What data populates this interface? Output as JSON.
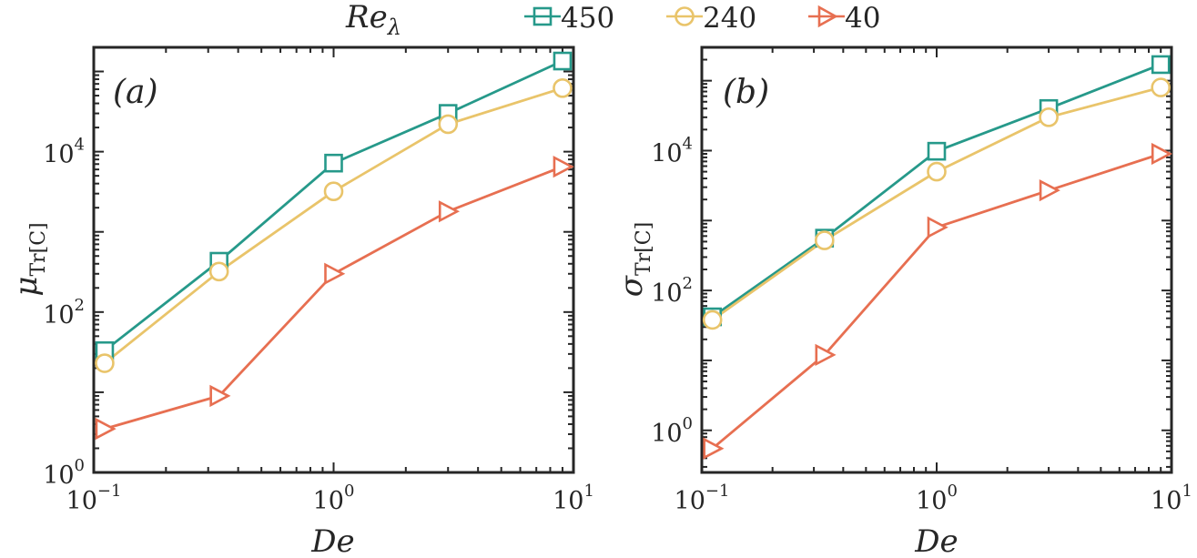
{
  "legend": {
    "title": "Re",
    "title_sub": "λ",
    "entries": [
      "450",
      "240",
      "40"
    ]
  },
  "colors": {
    "s450": "#26998a",
    "s240": "#e9c46a",
    "s40": "#e76f51",
    "axis": "#262626"
  },
  "chart_data": [
    {
      "type": "line",
      "panel": "(a)",
      "xscale": "log",
      "yscale": "log",
      "xlim": [
        0.1,
        10
      ],
      "ylim": [
        1,
        200000
      ],
      "xlabel": "De",
      "ylabel_base": "μ",
      "ylabel_sub": "Tr[C]",
      "xticks": [
        {
          "base": "10",
          "exp": "−1",
          "value": 0.1
        },
        {
          "base": "10",
          "exp": "0",
          "value": 1
        },
        {
          "base": "10",
          "exp": "1",
          "value": 10
        }
      ],
      "yticks": [
        {
          "base": "10",
          "exp": "0",
          "value": 1
        },
        {
          "base": "10",
          "exp": "2",
          "value": 100
        },
        {
          "base": "10",
          "exp": "4",
          "value": 10000
        }
      ],
      "x": [
        0.111,
        0.333,
        1.0,
        3.0,
        9.0
      ],
      "series": [
        {
          "name": "450",
          "marker": "square",
          "color": "#26998a",
          "values": [
            33,
            430,
            7200,
            30000,
            135000
          ]
        },
        {
          "name": "240",
          "marker": "circle",
          "color": "#e9c46a",
          "values": [
            23,
            320,
            3200,
            22000,
            62000
          ]
        },
        {
          "name": "40",
          "marker": "triangle-right",
          "color": "#e76f51",
          "values": [
            3.5,
            9,
            300,
            1800,
            6500
          ]
        }
      ]
    },
    {
      "type": "line",
      "panel": "(b)",
      "xscale": "log",
      "yscale": "log",
      "xlim": [
        0.1,
        10
      ],
      "ylim": [
        0.25,
        300000
      ],
      "xlabel": "De",
      "ylabel_base": "σ",
      "ylabel_sub": "Tr[C]",
      "xticks": [
        {
          "base": "10",
          "exp": "−1",
          "value": 0.1
        },
        {
          "base": "10",
          "exp": "0",
          "value": 1
        },
        {
          "base": "10",
          "exp": "1",
          "value": 10
        }
      ],
      "yticks": [
        {
          "base": "10",
          "exp": "0",
          "value": 1
        },
        {
          "base": "10",
          "exp": "2",
          "value": 100
        },
        {
          "base": "10",
          "exp": "4",
          "value": 10000
        }
      ],
      "x": [
        0.111,
        0.333,
        1.0,
        3.0,
        9.0
      ],
      "series": [
        {
          "name": "450",
          "marker": "square",
          "color": "#26998a",
          "values": [
            42,
            560,
            9800,
            40000,
            170000
          ]
        },
        {
          "name": "240",
          "marker": "circle",
          "color": "#e9c46a",
          "values": [
            38,
            520,
            5000,
            30000,
            80000
          ]
        },
        {
          "name": "40",
          "marker": "triangle-right",
          "color": "#e76f51",
          "values": [
            0.55,
            12,
            800,
            2700,
            9000
          ]
        }
      ]
    }
  ]
}
